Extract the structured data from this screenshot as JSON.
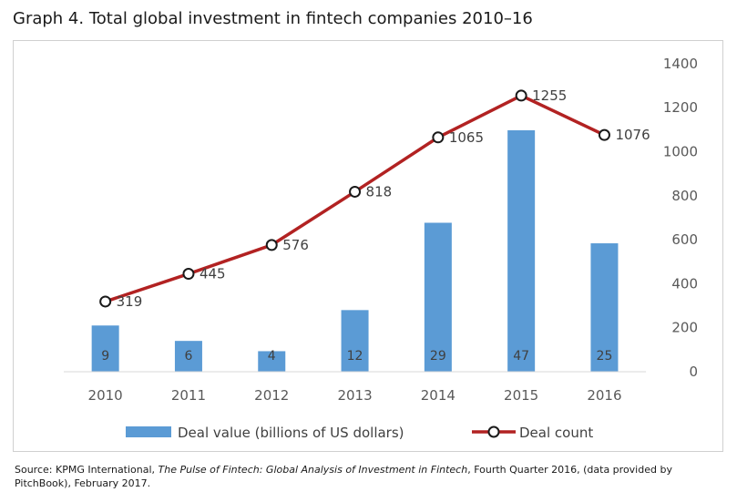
{
  "title": "Graph 4. Total global investment in fintech companies 2010–16",
  "source": {
    "prefix": "Source: KPMG International, ",
    "italic": "The Pulse of Fintech: Global Analysis of Investment in Fintech",
    "suffix": ", Fourth Quarter 2016, (data provided by PitchBook), February 2017."
  },
  "chart_data": {
    "type": "bar",
    "categories": [
      "2010",
      "2011",
      "2012",
      "2013",
      "2014",
      "2015",
      "2016"
    ],
    "series": [
      {
        "name": "Deal value (billions of US dollars)",
        "type": "bar",
        "values": [
          9,
          6,
          4,
          12,
          29,
          47,
          25
        ],
        "color": "#5b9bd5"
      },
      {
        "name": "Deal count",
        "type": "line",
        "values": [
          319,
          445,
          576,
          818,
          1065,
          1255,
          1076
        ],
        "color": "#b22222"
      }
    ],
    "right_axis": {
      "ylim": [
        0,
        1400
      ],
      "ticks": [
        "0",
        "200",
        "400",
        "600",
        "800",
        "1000",
        "1200",
        "1400"
      ]
    },
    "bar_ylim": [
      0,
      50
    ],
    "legend_position": "bottom",
    "grid": false
  }
}
